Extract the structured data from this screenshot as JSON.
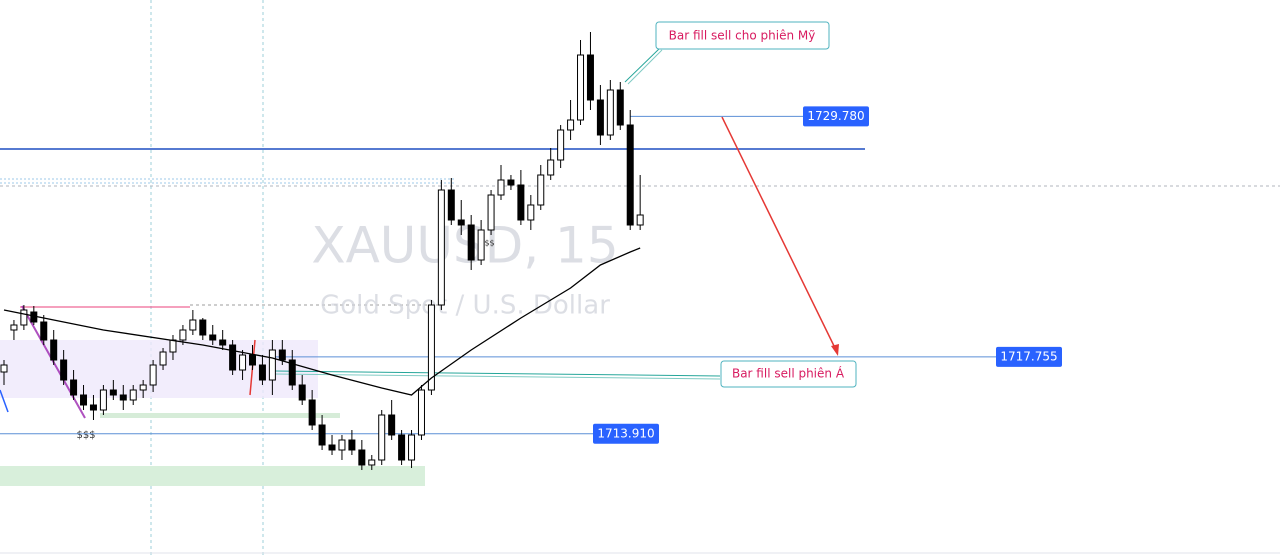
{
  "chart_data": {
    "type": "candlestick",
    "title": "XAUUSD, 15",
    "subtitle": "Gold Spot / U.S. Dollar",
    "ylim": [
      1707.7,
      1735.6
    ],
    "up_color": "#ffffff",
    "down_color": "#000000",
    "candles": [
      [
        1717.0,
        1717.6,
        1716.35,
        1717.35
      ],
      [
        1719.1,
        1719.6,
        1718.6,
        1719.35
      ],
      [
        1719.35,
        1720.35,
        1719.1,
        1720.1
      ],
      [
        1720.0,
        1720.3,
        1719.35,
        1719.5
      ],
      [
        1719.5,
        1719.85,
        1718.35,
        1718.6
      ],
      [
        1718.6,
        1719.1,
        1717.35,
        1717.6
      ],
      [
        1717.6,
        1718.1,
        1716.35,
        1716.6
      ],
      [
        1716.6,
        1717.1,
        1715.6,
        1715.85
      ],
      [
        1715.85,
        1716.35,
        1715.1,
        1715.35
      ],
      [
        1715.35,
        1715.85,
        1714.6,
        1715.1
      ],
      [
        1715.1,
        1716.35,
        1714.85,
        1716.1
      ],
      [
        1716.1,
        1716.6,
        1715.6,
        1715.85
      ],
      [
        1715.85,
        1716.35,
        1715.1,
        1715.6
      ],
      [
        1715.6,
        1716.35,
        1715.35,
        1716.1
      ],
      [
        1716.1,
        1716.6,
        1715.7,
        1716.35
      ],
      [
        1716.35,
        1717.6,
        1716.0,
        1717.35
      ],
      [
        1717.35,
        1718.2,
        1717.1,
        1718.0
      ],
      [
        1718.0,
        1718.85,
        1717.6,
        1718.6
      ],
      [
        1718.6,
        1719.35,
        1718.35,
        1719.1
      ],
      [
        1719.1,
        1720.1,
        1718.85,
        1719.6
      ],
      [
        1719.6,
        1719.7,
        1718.6,
        1718.85
      ],
      [
        1718.85,
        1719.35,
        1718.35,
        1718.6
      ],
      [
        1718.6,
        1719.1,
        1718.1,
        1718.35
      ],
      [
        1718.35,
        1718.6,
        1716.85,
        1717.1
      ],
      [
        1717.1,
        1718.1,
        1716.6,
        1717.85
      ],
      [
        1717.85,
        1718.35,
        1717.1,
        1717.35
      ],
      [
        1717.35,
        1717.85,
        1716.35,
        1716.6
      ],
      [
        1716.6,
        1718.6,
        1715.85,
        1718.1
      ],
      [
        1718.1,
        1718.6,
        1717.35,
        1717.6
      ],
      [
        1717.6,
        1718.1,
        1716.1,
        1716.35
      ],
      [
        1716.35,
        1716.85,
        1715.35,
        1715.6
      ],
      [
        1715.6,
        1716.1,
        1714.1,
        1714.35
      ],
      [
        1714.35,
        1714.85,
        1713.1,
        1713.35
      ],
      [
        1713.35,
        1713.85,
        1712.85,
        1713.1
      ],
      [
        1713.1,
        1713.85,
        1712.6,
        1713.6
      ],
      [
        1713.6,
        1714.1,
        1712.85,
        1713.1
      ],
      [
        1713.1,
        1713.6,
        1712.1,
        1712.35
      ],
      [
        1712.35,
        1712.85,
        1712.1,
        1712.6
      ],
      [
        1712.6,
        1715.1,
        1712.35,
        1714.85
      ],
      [
        1714.85,
        1715.6,
        1713.6,
        1713.85
      ],
      [
        1713.85,
        1714.1,
        1712.35,
        1712.6
      ],
      [
        1712.6,
        1714.1,
        1712.2,
        1713.85
      ],
      [
        1713.85,
        1716.35,
        1713.6,
        1716.1
      ],
      [
        1716.1,
        1720.6,
        1715.85,
        1720.35
      ],
      [
        1720.35,
        1726.6,
        1720.1,
        1726.1
      ],
      [
        1726.1,
        1726.7,
        1724.35,
        1724.6
      ],
      [
        1724.6,
        1725.6,
        1723.85,
        1724.35
      ],
      [
        1724.35,
        1724.85,
        1722.1,
        1722.6
      ],
      [
        1722.6,
        1724.6,
        1722.35,
        1724.1
      ],
      [
        1724.1,
        1726.1,
        1723.85,
        1725.85
      ],
      [
        1725.85,
        1727.35,
        1725.6,
        1726.6
      ],
      [
        1726.6,
        1726.85,
        1726.1,
        1726.35
      ],
      [
        1726.35,
        1727.1,
        1724.35,
        1724.6
      ],
      [
        1724.6,
        1725.85,
        1724.1,
        1725.35
      ],
      [
        1725.35,
        1727.35,
        1725.1,
        1726.85
      ],
      [
        1726.85,
        1728.2,
        1726.6,
        1727.6
      ],
      [
        1727.6,
        1729.35,
        1727.2,
        1729.1
      ],
      [
        1729.1,
        1730.6,
        1728.6,
        1729.6
      ],
      [
        1729.6,
        1733.6,
        1729.35,
        1732.85
      ],
      [
        1732.85,
        1734.0,
        1730.1,
        1730.6
      ],
      [
        1730.6,
        1731.35,
        1728.35,
        1728.85
      ],
      [
        1728.85,
        1731.6,
        1728.6,
        1731.1
      ],
      [
        1731.1,
        1731.5,
        1729.1,
        1729.35
      ],
      [
        1729.35,
        1730.1,
        1724.1,
        1724.35
      ],
      [
        1724.35,
        1726.85,
        1724.1,
        1724.85
      ]
    ],
    "ma": {
      "color": "#000000",
      "x": [
        0,
        10,
        20,
        27,
        33,
        38,
        41,
        43,
        47,
        52,
        57,
        60,
        63,
        64
      ],
      "values": [
        1720.1,
        1719.1,
        1718.35,
        1717.7,
        1716.85,
        1716.2,
        1715.85,
        1716.7,
        1718.1,
        1719.7,
        1721.2,
        1722.35,
        1723.0,
        1723.2
      ]
    },
    "price_labels": [
      {
        "value": 1729.78,
        "label": "1729.780"
      },
      {
        "value": 1717.755,
        "label": "1717.755"
      },
      {
        "value": 1713.91,
        "label": "1713.910"
      }
    ],
    "label_color": "#2962ff",
    "callouts": [
      "Bar fill sell cho phiên Mỹ",
      "Bar fill sell phiên Á"
    ],
    "marker_labels": [
      "$$$",
      "$$$"
    ]
  }
}
